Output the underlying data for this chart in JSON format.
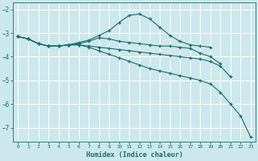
{
  "bg_color": "#cce8ec",
  "grid_color": "#b8d8dc",
  "line_color": "#1a6e6a",
  "xlabel": "Humidex (Indice chaleur)",
  "xlim": [
    -0.5,
    23.5
  ],
  "ylim": [
    -7.6,
    -1.7
  ],
  "yticks": [
    -7,
    -6,
    -5,
    -4,
    -3,
    -2
  ],
  "xticks": [
    0,
    1,
    2,
    3,
    4,
    5,
    6,
    7,
    8,
    9,
    10,
    11,
    12,
    13,
    14,
    15,
    16,
    17,
    18,
    19,
    20,
    21,
    22,
    23
  ],
  "lines": [
    {
      "x": [
        0,
        1,
        2,
        3,
        4,
        5,
        6,
        7,
        8,
        9,
        10,
        11,
        12,
        13,
        14,
        15,
        16,
        17,
        18,
        19
      ],
      "y": [
        -3.15,
        -3.25,
        -3.45,
        -3.55,
        -3.55,
        -3.5,
        -3.4,
        -3.3,
        -3.1,
        -2.9,
        -2.55,
        -2.25,
        -2.2,
        -2.4,
        -2.75,
        -3.1,
        -3.35,
        -3.5,
        -3.55,
        -3.6
      ]
    },
    {
      "x": [
        0,
        1,
        2,
        3,
        4,
        5,
        6,
        7,
        8,
        9,
        10,
        11,
        12,
        13,
        14,
        15,
        16,
        17,
        18,
        19,
        20
      ],
      "y": [
        -3.15,
        -3.25,
        -3.45,
        -3.55,
        -3.55,
        -3.5,
        -3.45,
        -3.35,
        -3.2,
        -3.25,
        -3.35,
        -3.4,
        -3.45,
        -3.5,
        -3.55,
        -3.55,
        -3.6,
        -3.65,
        -3.85,
        -4.0,
        -4.3
      ]
    },
    {
      "x": [
        0,
        1,
        2,
        3,
        4,
        5,
        6,
        7,
        8,
        9,
        10,
        11,
        12,
        13,
        14,
        15,
        16,
        17,
        18,
        19,
        20,
        21
      ],
      "y": [
        -3.15,
        -3.25,
        -3.45,
        -3.55,
        -3.55,
        -3.5,
        -3.5,
        -3.55,
        -3.6,
        -3.65,
        -3.7,
        -3.75,
        -3.8,
        -3.85,
        -3.9,
        -3.95,
        -4.0,
        -4.05,
        -4.1,
        -4.2,
        -4.4,
        -4.85
      ]
    },
    {
      "x": [
        0,
        1,
        2,
        3,
        4,
        5,
        6,
        7,
        8,
        9,
        10,
        11,
        12,
        13,
        14,
        15,
        16,
        17,
        18,
        19,
        20,
        21,
        22,
        23
      ],
      "y": [
        -3.15,
        -3.25,
        -3.45,
        -3.55,
        -3.55,
        -3.5,
        -3.5,
        -3.6,
        -3.75,
        -3.9,
        -4.05,
        -4.2,
        -4.35,
        -4.5,
        -4.6,
        -4.7,
        -4.8,
        -4.9,
        -5.0,
        -5.15,
        -5.5,
        -6.0,
        -6.5,
        -7.4
      ]
    }
  ]
}
